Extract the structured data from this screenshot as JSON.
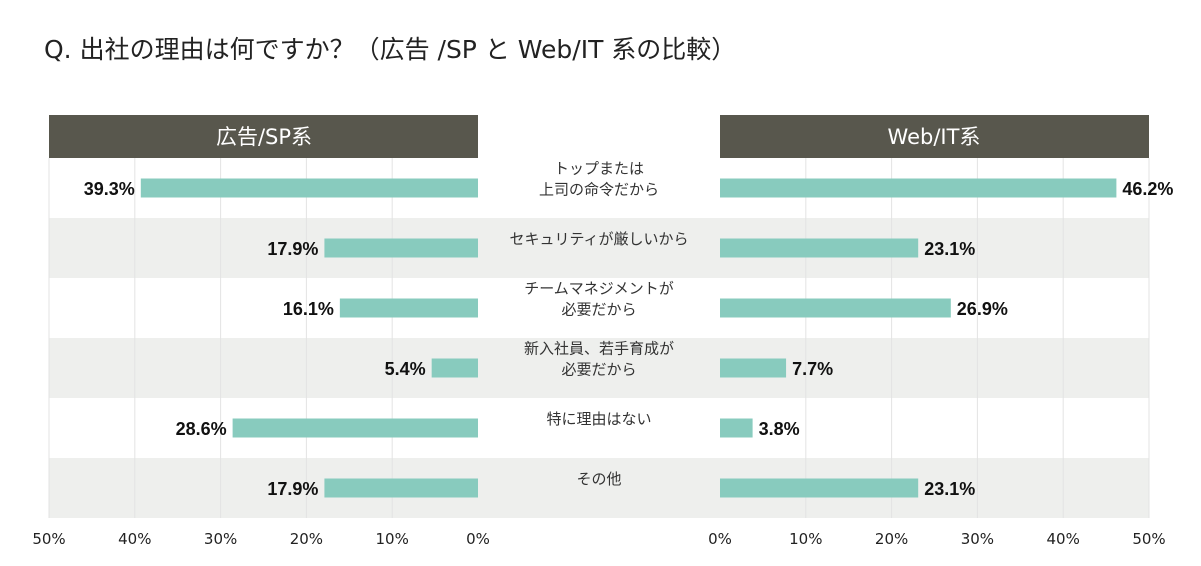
{
  "title": "Q. 出社の理由は何ですか？（広告 /SP と Web/IT 系の比較）",
  "colors": {
    "header_bg": "#58574d",
    "bar": "#88cbbe",
    "row_alt": "#eeefed",
    "grid": "#e3e3e3"
  },
  "chart_data": {
    "type": "bar",
    "layout": "butterfly",
    "title": "Q. 出社の理由は何ですか？（広告 /SP と Web/IT 系の比較）",
    "categories": [
      [
        "トップまたは",
        "上司の命令だから"
      ],
      [
        "セキュリティが厳しいから"
      ],
      [
        "チームマネジメントが",
        "必要だから"
      ],
      [
        "新入社員、若手育成が",
        "必要だから"
      ],
      [
        "特に理由はない"
      ],
      [
        "その他"
      ]
    ],
    "series": [
      {
        "name": "広告/SP系",
        "side": "left",
        "values": [
          39.3,
          17.9,
          16.1,
          5.4,
          28.6,
          17.9
        ],
        "labels": [
          "39.3%",
          "17.9%",
          "16.1%",
          "5.4%",
          "28.6%",
          "17.9%"
        ]
      },
      {
        "name": "Web/IT系",
        "side": "right",
        "values": [
          46.2,
          23.1,
          26.9,
          7.7,
          3.8,
          23.1
        ],
        "labels": [
          "46.2%",
          "23.1%",
          "26.9%",
          "7.7%",
          "3.8%",
          "23.1%"
        ]
      }
    ],
    "xlim": [
      0,
      50
    ],
    "left_ticks": [
      "50%",
      "40%",
      "30%",
      "20%",
      "10%",
      "0%"
    ],
    "right_ticks": [
      "0%",
      "10%",
      "20%",
      "30%",
      "40%",
      "50%"
    ],
    "tick_values_left": [
      50,
      40,
      30,
      20,
      10,
      0
    ],
    "tick_values_right": [
      0,
      10,
      20,
      30,
      40,
      50
    ]
  }
}
